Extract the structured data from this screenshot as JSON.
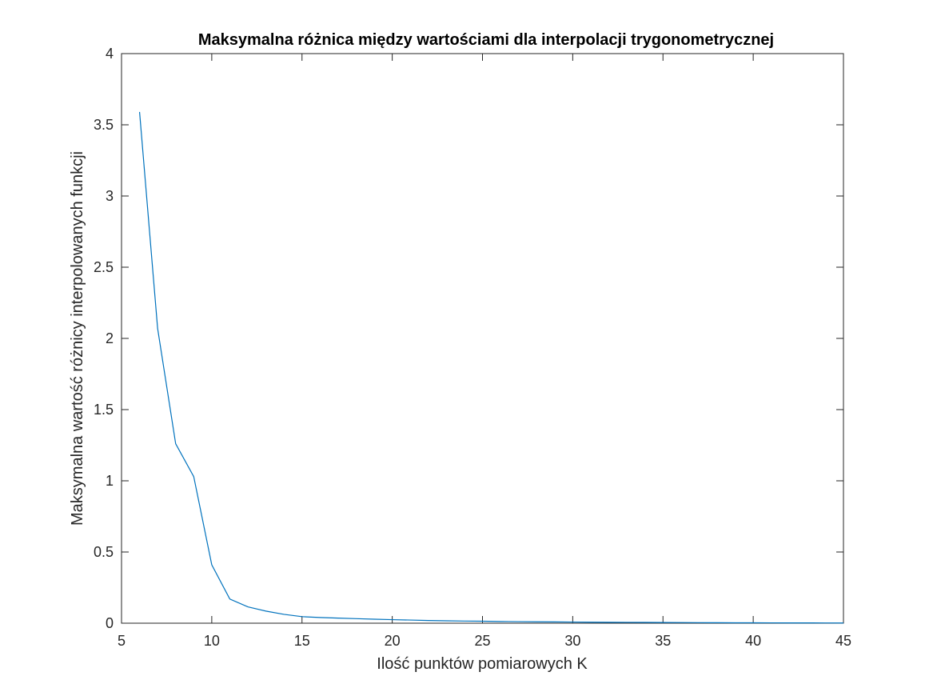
{
  "chart_data": {
    "type": "line",
    "title": "Maksymalna różnica między wartościami dla interpolacji trygonometrycznej",
    "xlabel": "Ilość punktów pomiarowych K",
    "ylabel": "Maksymalna wartość różnicy interpolowanych funkcji",
    "xlim": [
      5,
      45
    ],
    "ylim": [
      0,
      4
    ],
    "xticks": [
      "5",
      "10",
      "15",
      "20",
      "25",
      "30",
      "35",
      "40",
      "45"
    ],
    "yticks": [
      "0",
      "0.5",
      "1",
      "1.5",
      "2",
      "2.5",
      "3",
      "3.5",
      "4"
    ],
    "grid": false,
    "series_color": "#0072BD",
    "x": [
      6,
      7,
      8,
      9,
      10,
      11,
      12,
      13,
      14,
      15,
      16,
      17,
      18,
      19,
      20,
      21,
      22,
      23,
      24,
      25,
      26,
      27,
      28,
      29,
      30,
      31,
      32,
      33,
      34,
      35,
      36,
      37,
      38,
      39,
      40,
      41,
      42,
      43,
      44,
      45
    ],
    "y": [
      3.59,
      2.07,
      1.26,
      1.03,
      0.41,
      0.17,
      0.115,
      0.085,
      0.062,
      0.046,
      0.04,
      0.036,
      0.032,
      0.028,
      0.025,
      0.022,
      0.019,
      0.017,
      0.015,
      0.014,
      0.012,
      0.011,
      0.01,
      0.009,
      0.008,
      0.007,
      0.0065,
      0.006,
      0.0055,
      0.005,
      0.0045,
      0.004,
      0.0035,
      0.003,
      0.0028,
      0.0025,
      0.0022,
      0.002,
      0.0018,
      0.0016
    ]
  }
}
